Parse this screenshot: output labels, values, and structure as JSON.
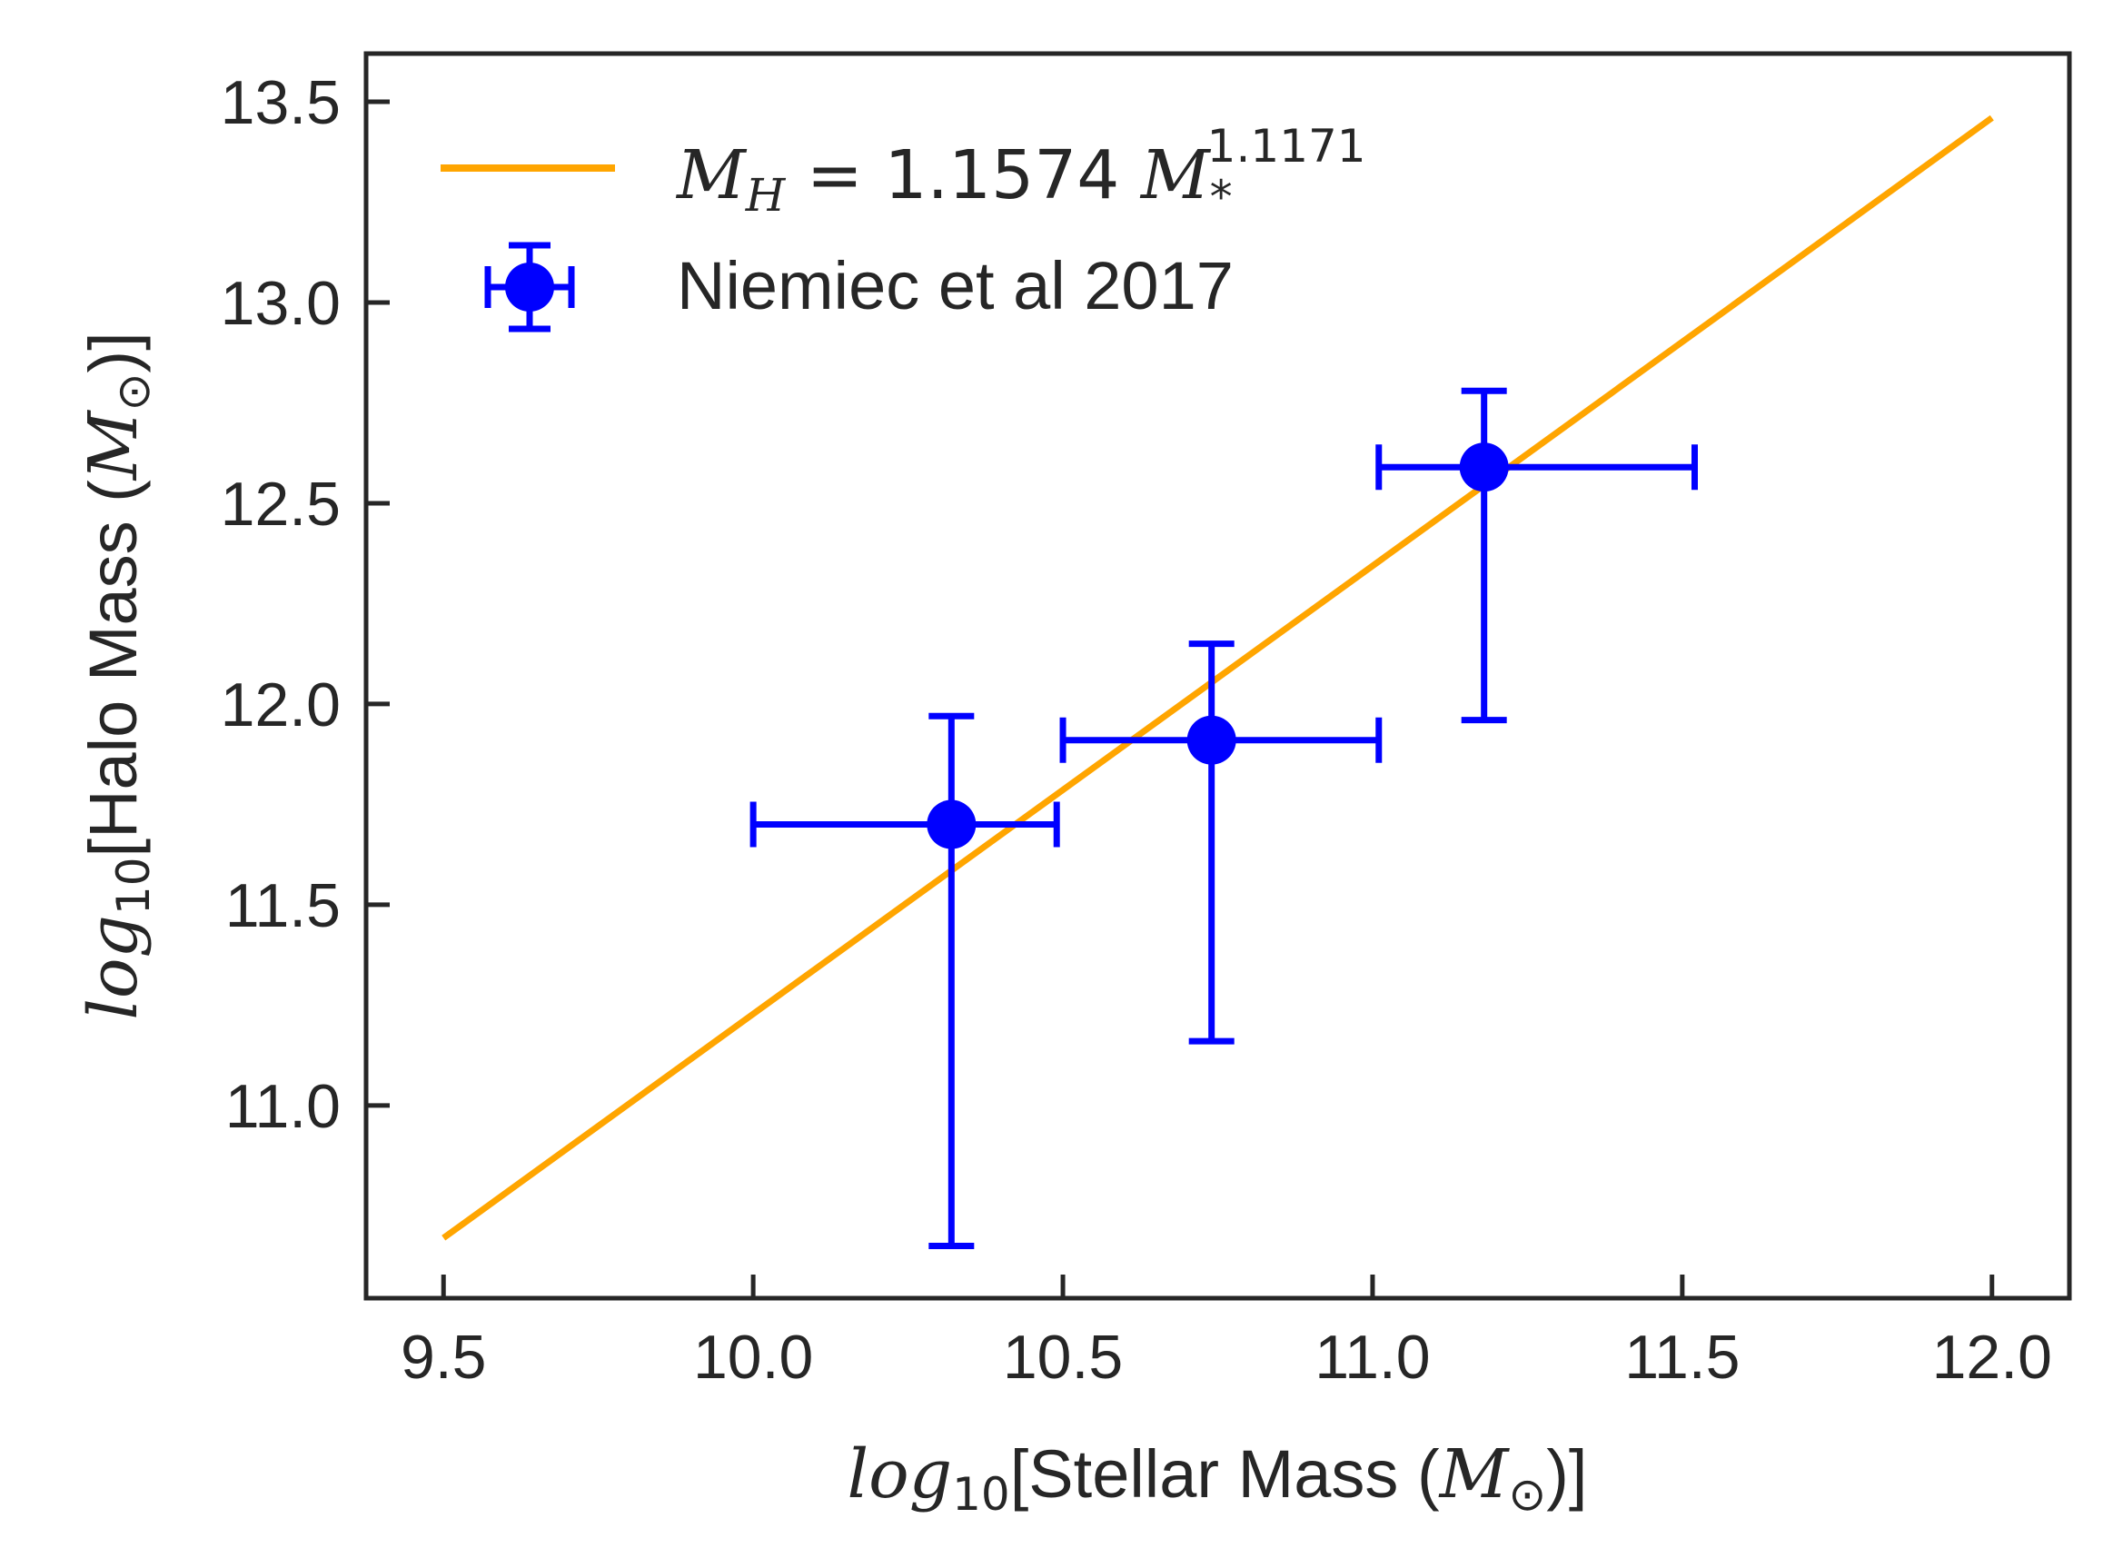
{
  "chart_data": {
    "type": "scatter",
    "xlabel": {
      "prefix": "log",
      "sub": "10",
      "text": "[Stellar Mass (",
      "unit": "M",
      "unit_sub": "⊙",
      "suffix": ")]"
    },
    "ylabel": {
      "prefix": "log",
      "sub": "10",
      "text": "[Halo Mass (",
      "unit": "M",
      "unit_sub": "⊙",
      "suffix": ")]"
    },
    "xlim": [
      9.375,
      12.125
    ],
    "ylim": [
      10.52,
      13.62
    ],
    "xticks": [
      "9.5",
      "10.0",
      "10.5",
      "11.0",
      "11.5",
      "12.0"
    ],
    "yticks": [
      "11.0",
      "11.5",
      "12.0",
      "12.5",
      "13.0",
      "13.5"
    ],
    "grid": false,
    "legend_position": "top-left",
    "series": [
      {
        "name": "M_H = 1.1574 M_*^1.1171",
        "kind": "line",
        "color": "#FFA500",
        "x": [
          9.5,
          12.0
        ],
        "y": [
          10.67,
          13.46
        ]
      },
      {
        "name": "Niemiec et al 2017",
        "kind": "errorbar",
        "color": "#0000FF",
        "points": [
          {
            "x": 10.32,
            "y": 11.7,
            "xerr_low": 0.32,
            "xerr_high": 0.17,
            "yerr_low": 1.05,
            "yerr_high": 0.27
          },
          {
            "x": 10.74,
            "y": 11.91,
            "xerr_low": 0.24,
            "xerr_high": 0.27,
            "yerr_low": 0.75,
            "yerr_high": 0.24
          },
          {
            "x": 11.18,
            "y": 12.59,
            "xerr_low": 0.17,
            "xerr_high": 0.34,
            "yerr_low": 0.63,
            "yerr_high": 0.19
          }
        ]
      }
    ],
    "legend": {
      "fit": {
        "lhs": "M",
        "lhs_sub": "H",
        "eq": " = 1.1574 ",
        "rhs": "M",
        "rhs_sub": "*",
        "rhs_sup": "1.1171"
      },
      "data_label": "Niemiec et al 2017"
    }
  }
}
